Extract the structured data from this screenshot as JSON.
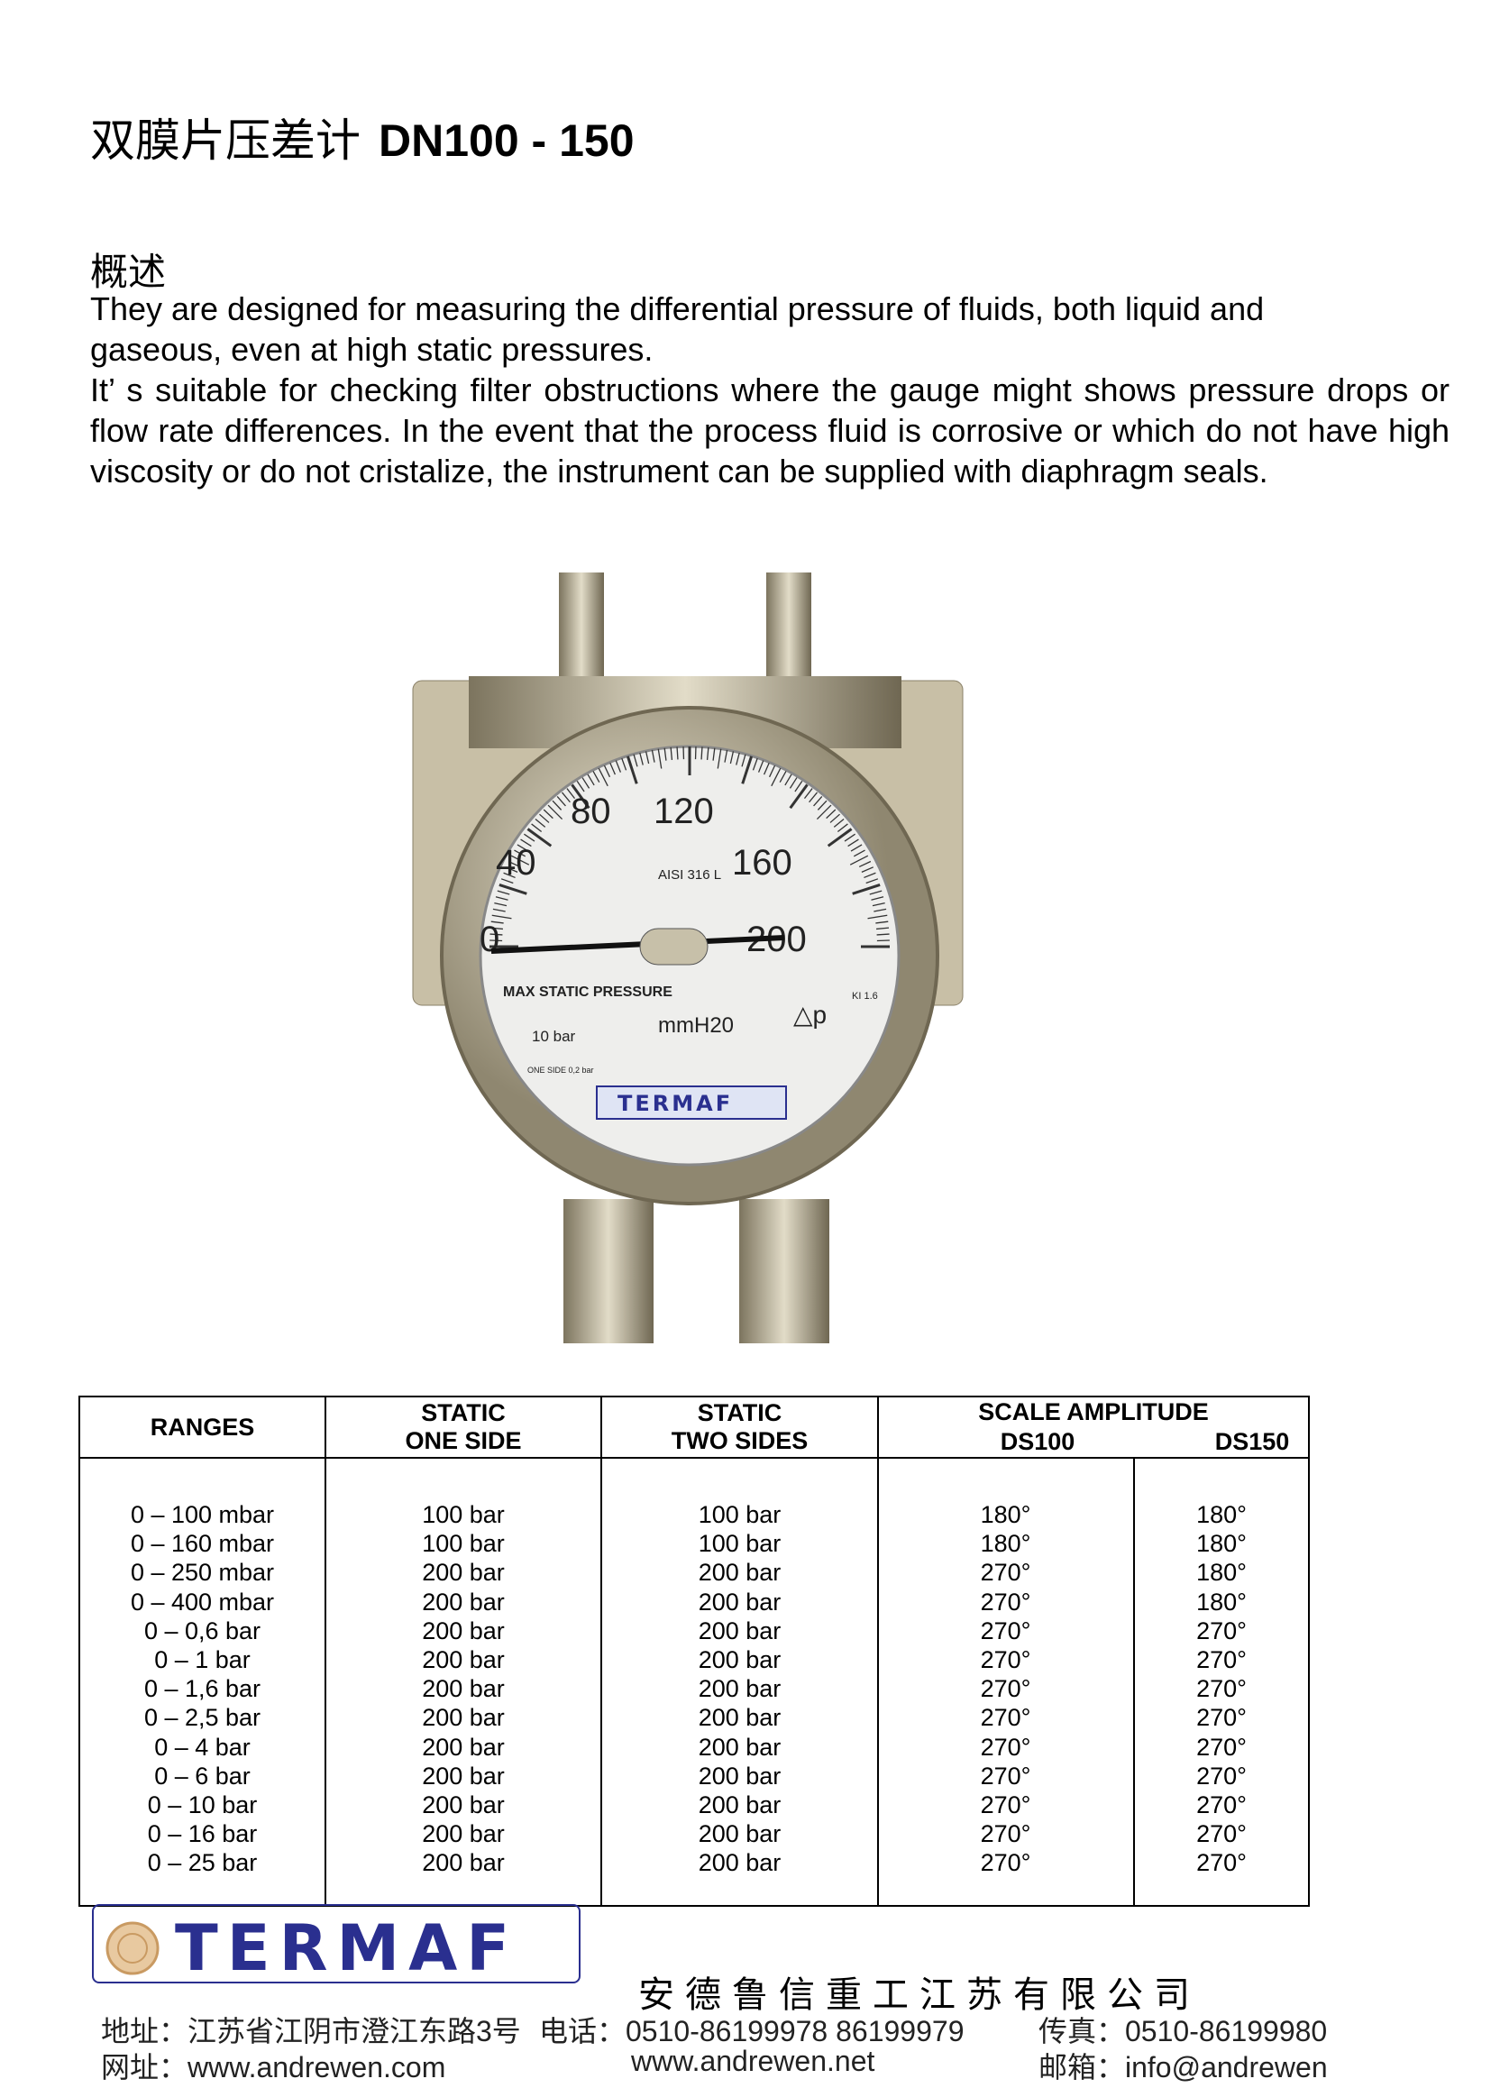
{
  "header": {
    "title_cn": "双膜片压差计",
    "title_model": "DN100 - 150"
  },
  "overview": {
    "heading": "概述",
    "para1": "They are designed for measuring  the differential pressure of fluids, both liquid and gaseous, even at high static pressures.",
    "para2": "It’ s suitable for checking filter obstructions where the gauge might shows pressure drops or flow rate differences. In the event that the process fluid is corrosive or which do not have high viscosity or do not cristalize, the instrument can be supplied with diaphragm seals."
  },
  "gauge": {
    "scale": [
      "0",
      "40",
      "80",
      "120",
      "160",
      "200"
    ],
    "material": "AISI 316 L",
    "static_label": "MAX STATIC PRESSURE",
    "static_value": "10  bar",
    "unit": "mmH20",
    "delta": "△p",
    "class": "KI 1.6",
    "one_side": "ONE SIDE 0,2 bar",
    "brand": "TERMAF"
  },
  "table": {
    "headers": {
      "ranges": "RANGES",
      "one_side": [
        "STATIC",
        "ONE SIDE"
      ],
      "two_sides": [
        "STATIC",
        "TWO SIDES"
      ],
      "scale": "SCALE AMPLITUDE",
      "ds100": "DS100",
      "ds150": "DS150"
    },
    "ranges": [
      "0 – 100 mbar",
      "0 – 160 mbar",
      "0 – 250 mbar",
      "0 – 400 mbar",
      "0 – 0,6 bar",
      "0 – 1 bar",
      "0 – 1,6 bar",
      "0 – 2,5 bar",
      "0 – 4 bar",
      "0 – 6 bar",
      "0 – 10 bar",
      "0 – 16 bar",
      "0 – 25 bar"
    ],
    "one_side": [
      "100 bar",
      "100 bar",
      "200 bar",
      "200 bar",
      "200 bar",
      "200 bar",
      "200 bar",
      "200 bar",
      "200 bar",
      "200 bar",
      "200 bar",
      "200 bar",
      "200 bar"
    ],
    "two_sides": [
      "100 bar",
      "100 bar",
      "200 bar",
      "200 bar",
      "200 bar",
      "200 bar",
      "200 bar",
      "200 bar",
      "200 bar",
      "200 bar",
      "200 bar",
      "200 bar",
      "200 bar"
    ],
    "ds100": [
      "180°",
      "180°",
      "270°",
      "270°",
      "270°",
      "270°",
      "270°",
      "270°",
      "270°",
      "270°",
      "270°",
      "270°",
      "270°"
    ],
    "ds150": [
      "180°",
      "180°",
      "180°",
      "180°",
      "270°",
      "270°",
      "270°",
      "270°",
      "270°",
      "270°",
      "270°",
      "270°",
      "270°"
    ]
  },
  "footer": {
    "logo": "TERMAF",
    "company": "安德鲁信重工江苏有限公司",
    "address": "地址：江苏省江阴市澄江东路3号",
    "phone": "电话：0510-86199978  86199979",
    "fax": "传真：0510-86199980",
    "web1": "网址：www.andrewen.com",
    "web2": "www.andrewen.net",
    "email": "邮箱：info@andrewen"
  },
  "colors": {
    "brand": "#2a2f8f",
    "accent": "#e07a1f"
  }
}
